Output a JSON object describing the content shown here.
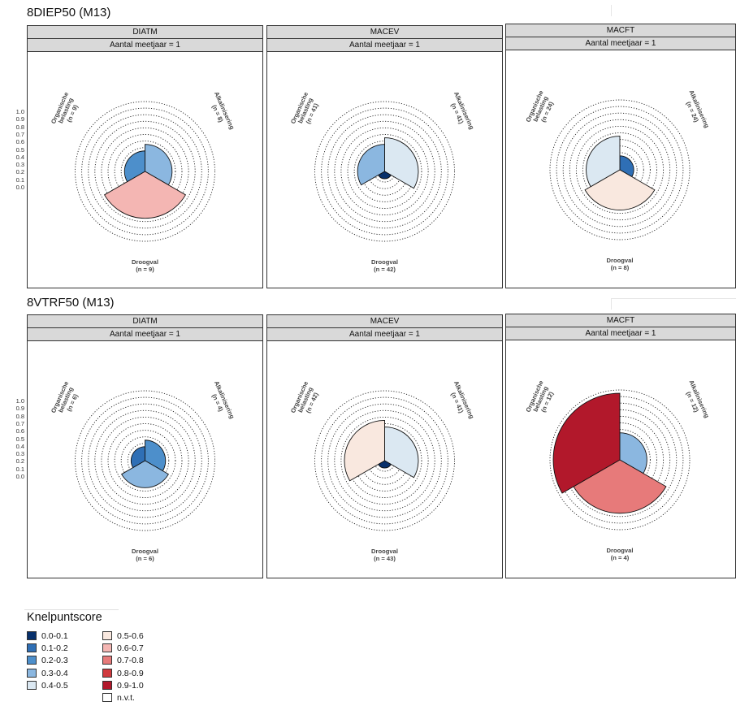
{
  "legend": {
    "title": "Knelpuntscore",
    "items": [
      {
        "label": "0.0-0.1",
        "color": "#08306b"
      },
      {
        "label": "0.1-0.2",
        "color": "#2f6fb5"
      },
      {
        "label": "0.2-0.3",
        "color": "#4d8fcb"
      },
      {
        "label": "0.3-0.4",
        "color": "#8bb7e0"
      },
      {
        "label": "0.4-0.5",
        "color": "#dbe8f2"
      },
      {
        "label": "0.5-0.6",
        "color": "#f9e8df"
      },
      {
        "label": "0.6-0.7",
        "color": "#f4b6b3"
      },
      {
        "label": "0.7-0.8",
        "color": "#e77a7a"
      },
      {
        "label": "0.8-0.9",
        "color": "#d03a3e"
      },
      {
        "label": "0.9-1.0",
        "color": "#b2182b"
      },
      {
        "label": "n.v.t.",
        "color": "#ffffff"
      }
    ]
  },
  "chart_data": [
    {
      "type": "polar-bar",
      "section": "8DIEP50 (M13)",
      "facet": "DIATM",
      "subtitle": "Aantal meetjaar = 1",
      "ylim": [
        0,
        1.0
      ],
      "y_ticks": [
        "1.0",
        "0.9",
        "0.8",
        "0.7",
        "0.6",
        "0.5",
        "0.4",
        "0.3",
        "0.2",
        "0.1",
        "0.0"
      ],
      "categories": [
        {
          "label1": "Alkalinisering",
          "label2": "(n = 8)",
          "value": 0.35,
          "score_class": "0.3-0.4"
        },
        {
          "label1": "Droogval",
          "label2": "(n = 9)",
          "value": 0.65,
          "score_class": "0.6-0.7"
        },
        {
          "label1": "Organische belasting",
          "label2": "(n = 9)",
          "value": 0.25,
          "score_class": "0.2-0.3"
        }
      ]
    },
    {
      "type": "polar-bar",
      "section": "8DIEP50 (M13)",
      "facet": "MACEV",
      "subtitle": "Aantal meetjaar = 1",
      "ylim": [
        0,
        1.0
      ],
      "categories": [
        {
          "label1": "Alkalinisering",
          "label2": "(n = 41)",
          "value": 0.45,
          "score_class": "0.4-0.5"
        },
        {
          "label1": "Droogval",
          "label2": "(n = 42)",
          "value": 0.05,
          "score_class": "0.0-0.1"
        },
        {
          "label1": "Organische belasting",
          "label2": "(n = 41)",
          "value": 0.35,
          "score_class": "0.3-0.4"
        }
      ]
    },
    {
      "type": "polar-bar",
      "section": "8DIEP50 (M13)",
      "facet": "MACFT",
      "subtitle": "Aantal meetjaar = 1",
      "ylim": [
        0,
        1.0
      ],
      "categories": [
        {
          "label1": "Alkalinisering",
          "label2": "(n = 24)",
          "value": 0.15,
          "score_class": "0.1-0.2"
        },
        {
          "label1": "Droogval",
          "label2": "(n = 8)",
          "value": 0.55,
          "score_class": "0.5-0.6"
        },
        {
          "label1": "Organische belasting",
          "label2": "(n = 24)",
          "value": 0.45,
          "score_class": "0.4-0.5"
        }
      ]
    },
    {
      "type": "polar-bar",
      "section": "8VTRF50 (M13)",
      "facet": "DIATM",
      "subtitle": "Aantal meetjaar = 1",
      "ylim": [
        0,
        1.0
      ],
      "y_ticks": [
        "1.0",
        "0.9",
        "0.8",
        "0.7",
        "0.6",
        "0.5",
        "0.4",
        "0.3",
        "0.2",
        "0.1",
        "0.0"
      ],
      "categories": [
        {
          "label1": "Alkalinisering",
          "label2": "(n = 4)",
          "value": 0.25,
          "score_class": "0.2-0.3"
        },
        {
          "label1": "Droogval",
          "label2": "(n = 6)",
          "value": 0.35,
          "score_class": "0.3-0.4"
        },
        {
          "label1": "Organische belasting",
          "label2": "(n = 6)",
          "value": 0.15,
          "score_class": "0.1-0.2"
        }
      ]
    },
    {
      "type": "polar-bar",
      "section": "8VTRF50 (M13)",
      "facet": "MACEV",
      "subtitle": "Aantal meetjaar = 1",
      "ylim": [
        0,
        1.0
      ],
      "categories": [
        {
          "label1": "Alkalinisering",
          "label2": "(n = 41)",
          "value": 0.45,
          "score_class": "0.4-0.5"
        },
        {
          "label1": "Droogval",
          "label2": "(n = 43)",
          "value": 0.05,
          "score_class": "0.0-0.1"
        },
        {
          "label1": "Organische belasting",
          "label2": "(n = 42)",
          "value": 0.55,
          "score_class": "0.5-0.6"
        }
      ]
    },
    {
      "type": "polar-bar",
      "section": "8VTRF50 (M13)",
      "facet": "MACFT",
      "subtitle": "Aantal meetjaar = 1",
      "ylim": [
        0,
        1.0
      ],
      "categories": [
        {
          "label1": "Alkalinisering",
          "label2": "(n = 12)",
          "value": 0.35,
          "score_class": "0.3-0.4"
        },
        {
          "label1": "Droogval",
          "label2": "(n = 4)",
          "value": 0.75,
          "score_class": "0.7-0.8"
        },
        {
          "label1": "Organische belasting",
          "label2": "(n = 12)",
          "value": 0.95,
          "score_class": "0.9-1.0"
        }
      ]
    }
  ]
}
